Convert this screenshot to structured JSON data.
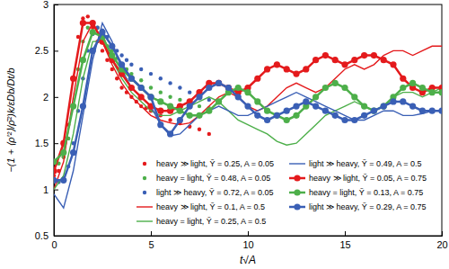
{
  "chart_data": {
    "type": "line",
    "x_label": "t√A",
    "y_label": "−(1 + ⟨ρ′²⟩/ρ̄²)k/εDb/Dt/b",
    "xlim": [
      0,
      20
    ],
    "ylim": [
      0.5,
      3
    ],
    "xticks": [
      0,
      5,
      10,
      15,
      20
    ],
    "yticks": [
      0.5,
      1,
      1.5,
      2,
      2.5,
      3
    ],
    "legend": "lower right",
    "series": [
      {
        "name": "heavy ≫ light, Ỹ = 0.25, A = 0.05",
        "color": "#e41a1c",
        "type": "scatter",
        "marker": "circle",
        "x": [
          0,
          0.25,
          0.5,
          0.75,
          1,
          1.25,
          1.5,
          1.75,
          2,
          2.25,
          2.5,
          2.75,
          3,
          3.25,
          3.5,
          3.75,
          4,
          4.25,
          4.5,
          4.75,
          5,
          5.5,
          6,
          6.5,
          7,
          7.5,
          8
        ],
        "values": [
          1.15,
          1.2,
          1.35,
          1.7,
          2.2,
          2.65,
          2.85,
          2.87,
          2.75,
          2.6,
          2.5,
          2.4,
          2.3,
          2.2,
          2.1,
          2.05,
          2.0,
          1.95,
          1.9,
          1.88,
          1.85,
          1.8,
          1.75,
          1.72,
          1.68,
          1.65,
          1.6
        ]
      },
      {
        "name": "heavy = light, Ỹ = 0.48, A = 0.05",
        "color": "#4daf4a",
        "type": "scatter",
        "marker": "circle",
        "x": [
          0,
          0.25,
          0.5,
          0.75,
          1,
          1.25,
          1.5,
          1.75,
          2,
          2.25,
          2.5,
          2.75,
          3,
          3.25,
          3.5,
          3.75,
          4,
          4.5,
          5,
          5.5,
          6,
          6.5,
          7,
          7.5,
          8
        ],
        "values": [
          1.3,
          1.28,
          1.35,
          1.55,
          1.9,
          2.3,
          2.6,
          2.75,
          2.8,
          2.75,
          2.65,
          2.55,
          2.5,
          2.42,
          2.35,
          2.3,
          2.25,
          2.18,
          2.1,
          2.05,
          2.0,
          1.97,
          1.93,
          1.9,
          1.88
        ]
      },
      {
        "name": "light ≫ heavy, Ỹ = 0.72, A = 0.05",
        "color": "#3a5fb5",
        "type": "scatter",
        "marker": "circle",
        "x": [
          0,
          0.25,
          0.5,
          0.75,
          1,
          1.25,
          1.5,
          1.75,
          2,
          2.25,
          2.5,
          2.75,
          3,
          3.25,
          3.5,
          3.75,
          4,
          4.5,
          5,
          5.5,
          6,
          6.5,
          7,
          7.5,
          8
        ],
        "values": [
          1.1,
          1.08,
          1.12,
          1.25,
          1.5,
          1.85,
          2.2,
          2.5,
          2.68,
          2.75,
          2.72,
          2.65,
          2.55,
          2.5,
          2.45,
          2.4,
          2.35,
          2.3,
          2.25,
          2.2,
          2.15,
          2.1,
          2.05,
          2.0,
          1.97
        ]
      },
      {
        "name": "heavy ≫ light, Ỹ = 0.1, A = 0.5",
        "color": "#e41a1c",
        "type": "line",
        "line_style": "solid",
        "x": [
          0,
          0.5,
          1,
          1.5,
          2,
          2.5,
          3,
          3.5,
          4,
          4.5,
          5,
          5.5,
          6,
          6.5,
          7,
          7.5,
          8,
          8.5,
          9,
          9.5,
          10,
          10.5,
          11,
          11.5,
          12,
          12.5,
          13,
          13.5,
          14,
          14.5,
          15,
          15.5,
          16,
          16.5,
          17,
          17.5,
          18,
          18.5,
          19,
          19.5,
          20
        ],
        "values": [
          1.0,
          1.3,
          2.0,
          2.6,
          2.8,
          2.6,
          2.35,
          2.15,
          2.0,
          1.9,
          1.8,
          1.75,
          1.72,
          1.7,
          1.72,
          1.8,
          1.9,
          2.0,
          2.05,
          2.0,
          1.9,
          1.85,
          1.9,
          2.0,
          2.1,
          2.15,
          2.1,
          2.05,
          2.1,
          2.2,
          2.3,
          2.35,
          2.3,
          2.35,
          2.45,
          2.5,
          2.5,
          2.45,
          2.5,
          2.55,
          2.55
        ]
      },
      {
        "name": "heavy = light, Ỹ = 0.25, A = 0.5",
        "color": "#4daf4a",
        "type": "line",
        "line_style": "solid",
        "x": [
          0,
          0.5,
          1,
          1.5,
          2,
          2.5,
          3,
          3.5,
          4,
          4.5,
          5,
          5.5,
          6,
          6.5,
          7,
          7.5,
          8,
          8.5,
          9,
          9.5,
          10,
          10.5,
          11,
          11.5,
          12,
          12.5,
          13,
          13.5,
          14,
          14.5,
          15,
          15.5,
          16,
          16.5,
          17,
          17.5,
          18,
          18.5,
          19,
          19.5,
          20
        ],
        "values": [
          1.0,
          1.15,
          1.6,
          2.2,
          2.6,
          2.6,
          2.4,
          2.2,
          2.05,
          1.95,
          1.85,
          1.8,
          1.8,
          1.85,
          1.9,
          1.95,
          2.0,
          1.95,
          1.85,
          1.75,
          1.7,
          1.65,
          1.6,
          1.52,
          1.48,
          1.5,
          1.6,
          1.7,
          1.8,
          1.85,
          1.9,
          1.95,
          1.9,
          1.85,
          1.9,
          2.0,
          2.05,
          2.05,
          2.0,
          2.05,
          2.1
        ]
      },
      {
        "name": "light ≫ heavy, Ỹ = 0.49, A = 0.5",
        "color": "#3a5fb5",
        "type": "line",
        "line_style": "solid",
        "x": [
          0,
          0.5,
          1,
          1.5,
          2,
          2.5,
          3,
          3.5,
          4,
          4.5,
          5,
          5.5,
          6,
          6.5,
          7,
          7.5,
          8,
          8.5,
          9,
          9.5,
          10,
          10.5,
          11,
          11.5,
          12,
          12.5,
          13,
          13.5,
          14,
          14.5,
          15,
          15.5,
          16,
          16.5,
          17,
          17.5,
          18,
          18.5,
          19,
          19.5,
          20
        ],
        "values": [
          0.95,
          0.8,
          1.2,
          1.8,
          2.4,
          2.8,
          2.6,
          2.3,
          2.1,
          2.0,
          1.9,
          1.7,
          1.58,
          1.6,
          1.7,
          1.8,
          1.85,
          1.9,
          1.85,
          1.8,
          1.8,
          1.85,
          1.9,
          1.95,
          2.0,
          2.05,
          2.0,
          1.95,
          1.9,
          1.85,
          1.8,
          1.75,
          1.75,
          1.8,
          1.85,
          1.85,
          1.8,
          1.8,
          1.82,
          1.85,
          1.85
        ]
      },
      {
        "name": "heavy ≫ light, Ỹ = 0.05, A = 0.75",
        "color": "#e41a1c",
        "type": "line",
        "marker": "circle",
        "line_style": "solid",
        "x": [
          0,
          0.5,
          1,
          1.5,
          2,
          2.5,
          3,
          3.5,
          4,
          4.5,
          5,
          5.5,
          6,
          6.5,
          7,
          7.5,
          8,
          8.5,
          9,
          9.5,
          10,
          10.5,
          11,
          11.5,
          12,
          12.5,
          13,
          13.5,
          14,
          14.5,
          15,
          15.5,
          16,
          16.5,
          17,
          17.5,
          18,
          18.5,
          19,
          19.5,
          20
        ],
        "values": [
          1.2,
          1.5,
          2.2,
          2.8,
          2.8,
          2.6,
          2.4,
          2.25,
          2.1,
          2.0,
          1.9,
          1.85,
          1.85,
          1.9,
          1.95,
          2.05,
          2.15,
          2.15,
          2.1,
          2.05,
          2.1,
          2.2,
          2.3,
          2.35,
          2.3,
          2.25,
          2.3,
          2.4,
          2.45,
          2.4,
          2.35,
          2.4,
          2.45,
          2.45,
          2.4,
          2.35,
          2.2,
          2.1,
          2.05,
          2.1,
          2.1
        ]
      },
      {
        "name": "heavy = light, Ỹ = 0.13, A = 0.75",
        "color": "#4daf4a",
        "type": "line",
        "marker": "circle",
        "line_style": "solid",
        "x": [
          0,
          0.5,
          1,
          1.5,
          2,
          2.5,
          3,
          3.5,
          4,
          4.5,
          5,
          5.5,
          6,
          6.5,
          7,
          7.5,
          8,
          8.5,
          9,
          9.5,
          10,
          10.5,
          11,
          11.5,
          12,
          12.5,
          13,
          13.5,
          14,
          14.5,
          15,
          15.5,
          16,
          16.5,
          17,
          17.5,
          18,
          18.5,
          19,
          19.5,
          20
        ],
        "values": [
          1.3,
          1.4,
          1.9,
          2.4,
          2.7,
          2.65,
          2.45,
          2.3,
          2.2,
          2.1,
          2.0,
          1.95,
          1.9,
          1.85,
          1.8,
          1.8,
          1.85,
          1.95,
          2.05,
          2.1,
          2.05,
          1.95,
          1.85,
          1.8,
          1.75,
          1.8,
          1.9,
          2.0,
          2.1,
          2.15,
          2.1,
          2.0,
          1.9,
          1.85,
          1.9,
          2.0,
          2.1,
          2.15,
          2.1,
          2.05,
          2.05
        ]
      },
      {
        "name": "light ≫ heavy, Ỹ = 0.29, A = 0.75",
        "color": "#3a5fb5",
        "type": "line",
        "marker": "circle",
        "line_style": "solid",
        "x": [
          0,
          0.5,
          1,
          1.5,
          2,
          2.5,
          3,
          3.5,
          4,
          4.5,
          5,
          5.5,
          6,
          6.5,
          7,
          7.5,
          8,
          8.5,
          9,
          9.5,
          10,
          10.5,
          11,
          11.5,
          12,
          12.5,
          13,
          13.5,
          14,
          14.5,
          15,
          15.5,
          16,
          16.5,
          17,
          17.5,
          18,
          18.5,
          19,
          19.5,
          20
        ],
        "values": [
          1.1,
          1.1,
          1.4,
          1.9,
          2.5,
          2.7,
          2.55,
          2.35,
          2.2,
          2.1,
          2.0,
          1.7,
          1.6,
          1.75,
          1.9,
          2.0,
          2.1,
          2.15,
          2.1,
          2.0,
          1.9,
          1.8,
          1.75,
          1.8,
          1.85,
          1.9,
          1.95,
          1.9,
          1.85,
          1.8,
          1.75,
          1.75,
          1.8,
          1.85,
          1.9,
          1.95,
          1.95,
          1.9,
          1.85,
          1.85,
          1.85
        ]
      }
    ]
  }
}
